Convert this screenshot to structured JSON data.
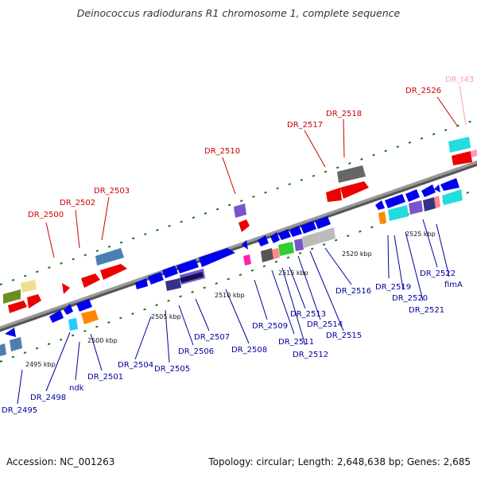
{
  "title": "Deinococcus radiodurans R1 chromosome 1, complete sequence",
  "footer": {
    "accession": "Accession: NC_001263",
    "topology": "Topology: circular; Length: 2,648,638 bp; Genes: 2,685"
  },
  "colors": {
    "rna_label": "#cc0000",
    "protein_label": "#000099",
    "trna_label": "#ff99bb",
    "backbone": "#888888",
    "tick_green": "#117711"
  },
  "scale_labels": [
    "2495 kbp",
    "2500 kbp",
    "2505 kbp",
    "2510 kbp",
    "2515 kbp",
    "2520 kbp",
    "2525 kbp"
  ],
  "top_labels": [
    "DR_2500",
    "DR_2502",
    "DR_2503",
    "DR_2510",
    "DR_2517",
    "DR_2518",
    "DR_2526",
    "DR_t43"
  ],
  "bottom_labels": [
    "DR_2495",
    "DR_2498",
    "ndk",
    "DR_2501",
    "DR_2504",
    "DR_2505",
    "DR_2506",
    "DR_2507",
    "DR_2508",
    "DR_2509",
    "DR_2511",
    "DR_2512",
    "DR_2513",
    "DR_2514",
    "DR_2515",
    "DR_2516",
    "DR_2519",
    "DR_2520",
    "DR_2521",
    "DR_2522",
    "fimA"
  ]
}
